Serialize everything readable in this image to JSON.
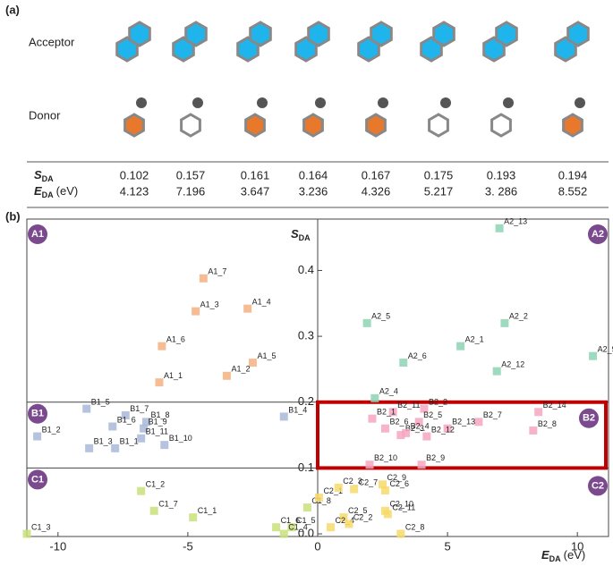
{
  "panel_a": {
    "label": "(a)",
    "row_labels": [
      "Acceptor",
      "Donor"
    ],
    "sda_label": {
      "symbol": "S",
      "subscript": "DA"
    },
    "eda_label": {
      "symbol": "E",
      "subscript": "DA",
      "suffix": "(eV)"
    },
    "sda": [
      "0.102",
      "0.157",
      "0.161",
      "0.164",
      "0.167",
      "0.175",
      "0.193",
      "0.194"
    ],
    "eda": [
      "4.123",
      "7.196",
      "3.647",
      "3.236",
      "4.326",
      "5.217",
      "3. 286",
      "8.552"
    ]
  },
  "chart_data": {
    "type": "scatter",
    "label": "(b)",
    "x_label": {
      "symbol": "E",
      "subscript": "DA",
      "suffix": "(eV)"
    },
    "y_label": {
      "symbol": "S",
      "subscript": "DA"
    },
    "xlim": [
      -11.2,
      11.2
    ],
    "ylim": [
      -0.004,
      0.478
    ],
    "xticks": [
      -10,
      -5,
      0,
      5,
      10
    ],
    "yticks": [
      {
        "value": 0,
        "label": "0.0"
      },
      0.1,
      0.2,
      0.3,
      0.4
    ],
    "series": [
      {
        "name": "A1",
        "color": "#f4b183",
        "labels": [
          "A1_7",
          "A1_3",
          "A1_4",
          "A1_6",
          "A1_5",
          "A1_2",
          "A1_1"
        ],
        "x": [
          -4.4,
          -4.7,
          -2.7,
          -6.0,
          -2.5,
          -3.5,
          -6.1
        ],
        "values": [
          0.388,
          0.338,
          0.342,
          0.285,
          0.26,
          0.24,
          0.23
        ]
      },
      {
        "name": "A2",
        "color": "#8dd3b4",
        "labels": [
          "A2_13",
          "A2_5",
          "A2_2",
          "A2_1",
          "A2_6",
          "A2_12",
          "A2_9",
          "A2_4"
        ],
        "x": [
          7.0,
          1.9,
          7.2,
          5.5,
          3.3,
          6.9,
          10.6,
          2.2
        ],
        "values": [
          0.464,
          0.32,
          0.32,
          0.285,
          0.26,
          0.247,
          0.27,
          0.206
        ]
      },
      {
        "name": "B1",
        "color": "#a9b9d9",
        "labels": [
          "B1_5",
          "B1_7",
          "B1_8",
          "B1_9",
          "B1_6",
          "B1_2",
          "B1_3",
          "B1_11",
          "B1_10",
          "B1_1",
          "B1_4"
        ],
        "x": [
          -8.9,
          -7.4,
          -6.6,
          -6.7,
          -7.9,
          -10.8,
          -8.8,
          -6.8,
          -5.9,
          -7.8,
          -1.3
        ],
        "values": [
          0.19,
          0.18,
          0.17,
          0.16,
          0.163,
          0.148,
          0.13,
          0.145,
          0.135,
          0.13,
          0.178
        ]
      },
      {
        "name": "B2",
        "color": "#f4a6c0",
        "labels": [
          "B2_2",
          "B2_11",
          "B2_1",
          "B2_5",
          "B2_7",
          "B2_14",
          "B2_6",
          "B2_13",
          "B2_8",
          "B2_3",
          "B2_4",
          "B2_12",
          "B2_10",
          "B2_9"
        ],
        "x": [
          4.1,
          2.9,
          2.1,
          3.9,
          6.2,
          8.5,
          2.6,
          5.0,
          8.3,
          3.2,
          3.4,
          4.2,
          2.0,
          4.0
        ],
        "values": [
          0.19,
          0.185,
          0.175,
          0.17,
          0.17,
          0.185,
          0.16,
          0.16,
          0.157,
          0.15,
          0.153,
          0.148,
          0.105,
          0.105
        ]
      },
      {
        "name": "C1",
        "color": "#c9e07a",
        "labels": [
          "C1_3",
          "C1_2",
          "C1_7",
          "C1_1",
          "C1_6",
          "C1_5",
          "C1_8",
          "C1_4"
        ],
        "x": [
          -11.2,
          -6.8,
          -6.3,
          -4.8,
          -1.6,
          -1.0,
          -0.4,
          -1.3
        ],
        "values": [
          0.0,
          0.065,
          0.035,
          0.025,
          0.01,
          0.01,
          0.04,
          0.0
        ]
      },
      {
        "name": "C2",
        "color": "#f7d96a",
        "labels": [
          "C2_1",
          "C2_3",
          "C2_7",
          "C2_9",
          "C2_6",
          "C2_10",
          "C2_5",
          "C2_11",
          "C2_4",
          "C2_2",
          "C2_8"
        ],
        "x": [
          0.05,
          0.8,
          1.4,
          2.5,
          2.6,
          2.6,
          1.0,
          2.7,
          0.5,
          1.2,
          3.2
        ],
        "values": [
          0.055,
          0.07,
          0.068,
          0.075,
          0.066,
          0.035,
          0.025,
          0.03,
          0.01,
          0.015,
          0.0
        ]
      }
    ]
  }
}
